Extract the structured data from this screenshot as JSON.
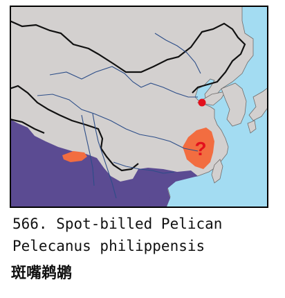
{
  "colors": {
    "sea": "#a3dcf2",
    "land": "#d3d0cf",
    "range_resident": "#5b4b92",
    "range_uncertain": "#f26d40",
    "record_point": "#e3101d",
    "border": "#111111",
    "river": "#2c4d88",
    "frame": "#000000"
  },
  "map": {
    "question_mark": "?",
    "legend_semantics": {
      "range_resident": "purple shaded area",
      "range_uncertain": "orange shaded area",
      "record_point": "red dot"
    }
  },
  "caption": {
    "line1": "566. Spot-billed Pelican",
    "line2": "Pelecanus philippensis",
    "line3": "斑嘴鹈鹕"
  }
}
